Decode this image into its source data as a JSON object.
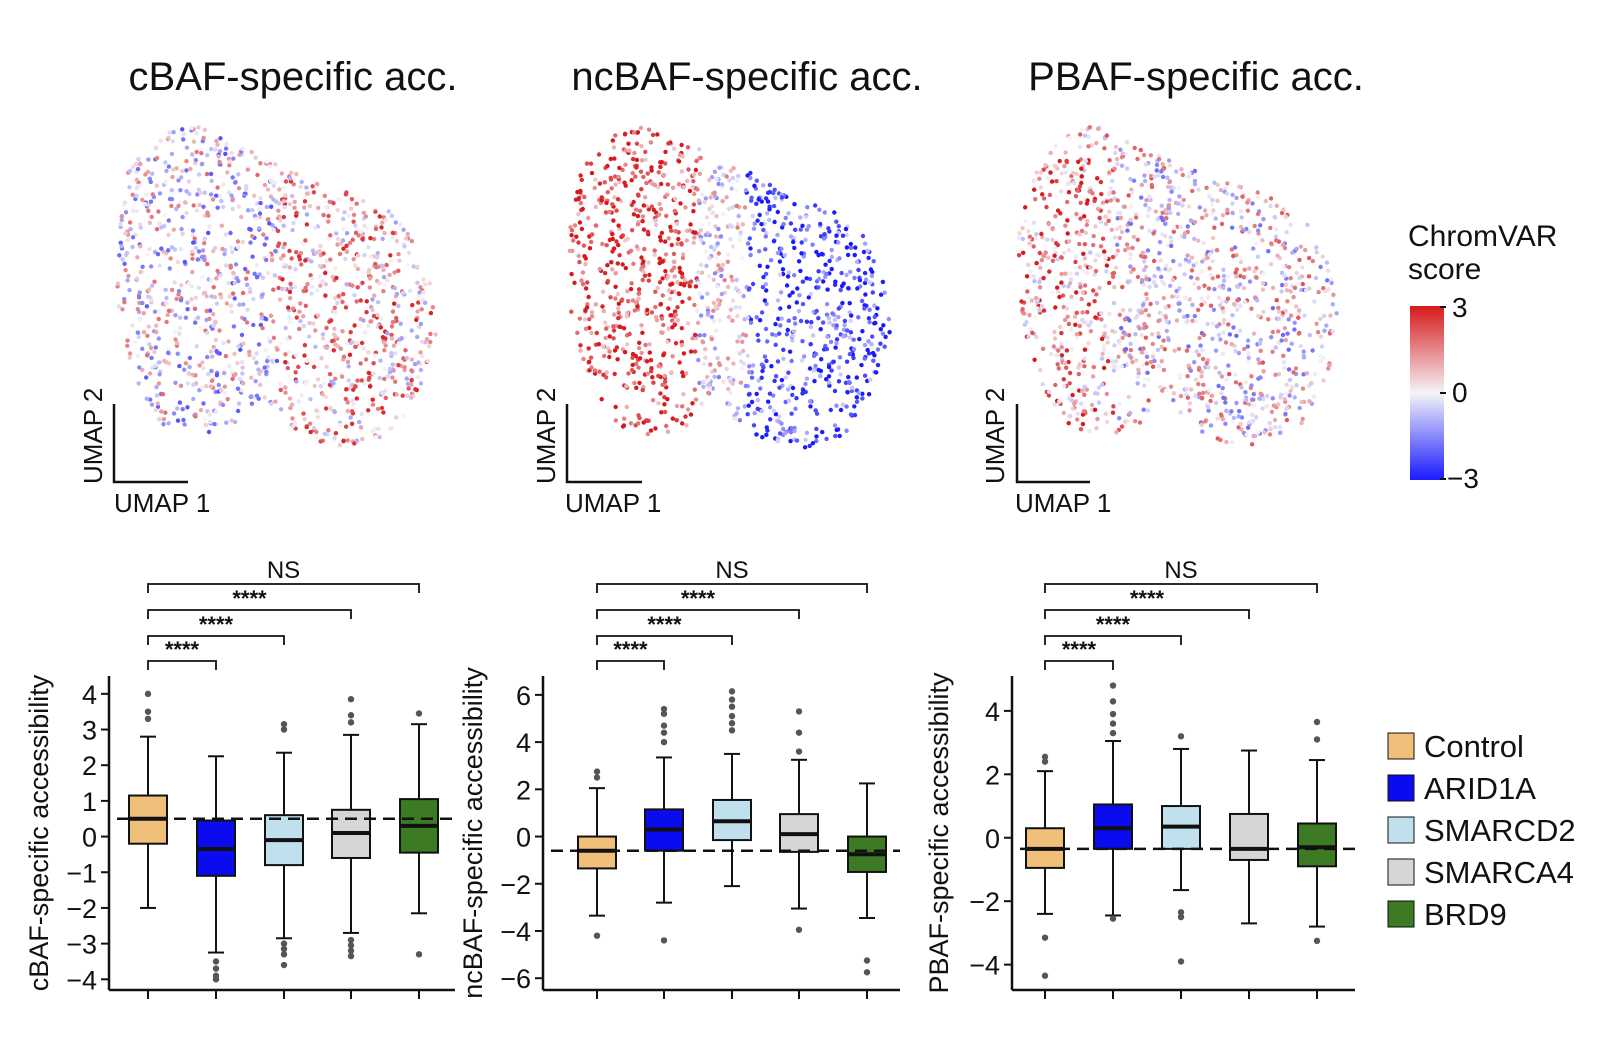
{
  "colors": {
    "high": "#d7191c",
    "mid": "#f4f4f8",
    "low": "#1a1aff",
    "groups": [
      "#f0bf7a",
      "#0b0bf0",
      "#bfe0ec",
      "#d6d6d6",
      "#3c7a23"
    ],
    "outlier": "#555555"
  },
  "legend": {
    "groups": [
      "Control",
      "ARID1A",
      "SMARCD2",
      "SMARCA4",
      "BRD9"
    ]
  },
  "colorbar": {
    "title_line1": "ChromVAR",
    "title_line2": "score",
    "ticks": [
      "3",
      "0",
      "−3"
    ]
  },
  "umaps": [
    {
      "title": "cBAF-specific acc.",
      "xlabel": "UMAP 1",
      "ylabel": "UMAP 2",
      "pattern": "cbaf"
    },
    {
      "title": "ncBAF-specific acc.",
      "xlabel": "UMAP 1",
      "ylabel": "UMAP 2",
      "pattern": "ncbaf"
    },
    {
      "title": "PBAF-specific acc.",
      "xlabel": "UMAP 1",
      "ylabel": "UMAP 2",
      "pattern": "pbaf"
    }
  ],
  "chart_data": [
    {
      "type": "box",
      "title": "",
      "ylabel": "cBAF-specific accessibility",
      "categories": [
        "Control",
        "ARID1A",
        "SMARCD2",
        "SMARCA4",
        "BRD9"
      ],
      "ylim": [
        -4.3,
        4.5
      ],
      "yticks": [
        4,
        3,
        2,
        1,
        0,
        -1,
        -2,
        -3,
        -4
      ],
      "ytick_labels": [
        "4",
        "3",
        "2",
        "1",
        "0",
        "−1",
        "−2",
        "−3",
        "−4"
      ],
      "reference_line": 0.5,
      "boxes": [
        {
          "group": "Control",
          "min": -2.0,
          "q1": -0.2,
          "median": 0.5,
          "q3": 1.15,
          "max": 2.8,
          "outliers": [
            3.3,
            3.5,
            4.0
          ]
        },
        {
          "group": "ARID1A",
          "min": -3.25,
          "q1": -1.1,
          "median": -0.35,
          "q3": 0.45,
          "max": 2.25,
          "outliers": [
            -3.5,
            -3.7,
            -3.9,
            -4.0
          ]
        },
        {
          "group": "SMARCD2",
          "min": -2.85,
          "q1": -0.8,
          "median": -0.1,
          "q3": 0.6,
          "max": 2.35,
          "outliers": [
            -3.0,
            -3.15,
            -3.3,
            -3.6,
            3.0,
            3.15
          ]
        },
        {
          "group": "SMARCA4",
          "min": -2.7,
          "q1": -0.6,
          "median": 0.1,
          "q3": 0.75,
          "max": 2.85,
          "outliers": [
            -2.9,
            -3.05,
            -3.2,
            -3.35,
            3.2,
            3.4,
            3.85
          ]
        },
        {
          "group": "BRD9",
          "min": -2.15,
          "q1": -0.45,
          "median": 0.3,
          "q3": 1.05,
          "max": 3.15,
          "outliers": [
            -3.3,
            3.45
          ]
        }
      ],
      "comparisons": [
        {
          "pair": [
            "Control",
            "ARID1A"
          ],
          "label": "****"
        },
        {
          "pair": [
            "Control",
            "SMARCD2"
          ],
          "label": "****"
        },
        {
          "pair": [
            "Control",
            "SMARCA4"
          ],
          "label": "****"
        },
        {
          "pair": [
            "Control",
            "BRD9"
          ],
          "label": "NS"
        }
      ]
    },
    {
      "type": "box",
      "title": "",
      "ylabel": "ncBAF-specific accessibility",
      "categories": [
        "Control",
        "ARID1A",
        "SMARCD2",
        "SMARCA4",
        "BRD9"
      ],
      "ylim": [
        -6.5,
        6.8
      ],
      "yticks": [
        6,
        4,
        2,
        0,
        -2,
        -4,
        -6
      ],
      "ytick_labels": [
        "6",
        "4",
        "2",
        "0",
        "−2",
        "−4",
        "−6"
      ],
      "reference_line": -0.6,
      "boxes": [
        {
          "group": "Control",
          "min": -3.35,
          "q1": -1.35,
          "median": -0.6,
          "q3": 0.0,
          "max": 2.05,
          "outliers": [
            -4.2,
            2.5,
            2.75
          ]
        },
        {
          "group": "ARID1A",
          "min": -2.8,
          "q1": -0.6,
          "median": 0.3,
          "q3": 1.15,
          "max": 3.35,
          "outliers": [
            -4.4,
            4.0,
            4.4,
            4.7,
            5.2,
            5.4
          ]
        },
        {
          "group": "SMARCD2",
          "min": -2.1,
          "q1": -0.15,
          "median": 0.65,
          "q3": 1.55,
          "max": 3.5,
          "outliers": [
            4.5,
            4.8,
            5.1,
            5.5,
            5.8,
            6.15
          ]
        },
        {
          "group": "SMARCA4",
          "min": -3.05,
          "q1": -0.65,
          "median": 0.1,
          "q3": 0.95,
          "max": 3.25,
          "outliers": [
            -3.95,
            3.6,
            4.4,
            5.3
          ]
        },
        {
          "group": "BRD9",
          "min": -3.45,
          "q1": -1.5,
          "median": -0.75,
          "q3": 0.0,
          "max": 2.25,
          "outliers": [
            -5.25,
            -5.75
          ]
        }
      ],
      "comparisons": [
        {
          "pair": [
            "Control",
            "ARID1A"
          ],
          "label": "****"
        },
        {
          "pair": [
            "Control",
            "SMARCD2"
          ],
          "label": "****"
        },
        {
          "pair": [
            "Control",
            "SMARCA4"
          ],
          "label": "****"
        },
        {
          "pair": [
            "Control",
            "BRD9"
          ],
          "label": "NS"
        }
      ]
    },
    {
      "type": "box",
      "title": "",
      "ylabel": "PBAF-specific accessibility",
      "categories": [
        "Control",
        "ARID1A",
        "SMARCD2",
        "SMARCA4",
        "BRD9"
      ],
      "ylim": [
        -4.8,
        5.1
      ],
      "yticks": [
        4,
        2,
        0,
        -2,
        -4
      ],
      "ytick_labels": [
        "4",
        "2",
        "0",
        "−2",
        "−4"
      ],
      "reference_line": -0.35,
      "boxes": [
        {
          "group": "Control",
          "min": -2.4,
          "q1": -0.95,
          "median": -0.35,
          "q3": 0.3,
          "max": 2.1,
          "outliers": [
            -3.15,
            -4.35,
            2.4,
            2.55
          ]
        },
        {
          "group": "ARID1A",
          "min": -2.45,
          "q1": -0.35,
          "median": 0.3,
          "q3": 1.05,
          "max": 3.05,
          "outliers": [
            -2.55,
            3.3,
            3.6,
            3.9,
            4.3,
            4.8
          ]
        },
        {
          "group": "SMARCD2",
          "min": -1.65,
          "q1": -0.35,
          "median": 0.35,
          "q3": 1.0,
          "max": 2.8,
          "outliers": [
            -2.35,
            -2.5,
            -3.9,
            3.2
          ]
        },
        {
          "group": "SMARCA4",
          "min": -2.7,
          "q1": -0.7,
          "median": -0.35,
          "q3": 0.75,
          "max": 2.75,
          "outliers": []
        },
        {
          "group": "BRD9",
          "min": -2.8,
          "q1": -0.9,
          "median": -0.3,
          "q3": 0.45,
          "max": 2.45,
          "outliers": [
            -3.25,
            3.1,
            3.65
          ]
        }
      ],
      "comparisons": [
        {
          "pair": [
            "Control",
            "ARID1A"
          ],
          "label": "****"
        },
        {
          "pair": [
            "Control",
            "SMARCD2"
          ],
          "label": "****"
        },
        {
          "pair": [
            "Control",
            "SMARCA4"
          ],
          "label": "****"
        },
        {
          "pair": [
            "Control",
            "BRD9"
          ],
          "label": "NS"
        }
      ]
    }
  ]
}
